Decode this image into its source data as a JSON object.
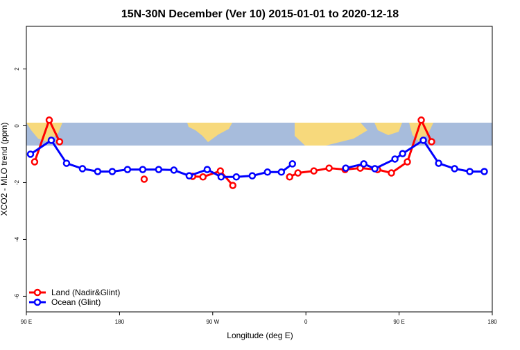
{
  "chart_data": {
    "type": "line",
    "title": "15N-30N December (Ver 10)   2015-01-01 to 2020-12-18",
    "x_label": "Longitude (deg E)",
    "y_label": "XCO2 - MLO trend (ppm)",
    "xlim": [
      90,
      540
    ],
    "ylim": [
      -6.55,
      3.5
    ],
    "xticks": [
      {
        "value": 90,
        "label": "90 E"
      },
      {
        "value": 180,
        "label": "180"
      },
      {
        "value": 270,
        "label": "90 W"
      },
      {
        "value": 360,
        "label": "0"
      },
      {
        "value": 450,
        "label": "90 E"
      },
      {
        "value": 540,
        "label": "180"
      }
    ],
    "yticks": [
      -6,
      -4,
      -2,
      0,
      2
    ],
    "legend": "bottom-left",
    "series": [
      {
        "name": "Land (Nadir&Glint)",
        "color": "#ff0000",
        "x": [
          98,
          112.1,
          122.1,
          null,
          203.8,
          null,
          250.6,
          260.6,
          277.4,
          289.4,
          null,
          344.3,
          352.3,
          367.7,
          382.4,
          397.8,
          412.5,
          429.2,
          442.6,
          458,
          471.4,
          481.4
        ],
        "values": [
          -1.27,
          0.2,
          -0.56,
          null,
          -1.88,
          null,
          -1.78,
          -1.8,
          -1.59,
          -2.1,
          null,
          -1.8,
          -1.66,
          -1.59,
          -1.49,
          -1.54,
          -1.49,
          -1.54,
          -1.66,
          -1.27,
          0.2,
          -0.56
        ]
      },
      {
        "name": "Ocean (Glint)",
        "color": "#0000ff",
        "x": [
          94,
          114.1,
          128.8,
          144.2,
          158.9,
          173,
          187.7,
          202.4,
          217.8,
          232.5,
          247.3,
          264.7,
          278.1,
          292.8,
          308.2,
          322.9,
          336.3,
          347,
          null,
          398.5,
          415.9,
          426.6,
          446,
          453.4,
          473.4,
          488.2,
          503.6,
          518.3,
          532.3
        ],
        "values": [
          -1.0,
          -0.51,
          -1.32,
          -1.51,
          -1.61,
          -1.61,
          -1.54,
          -1.54,
          -1.54,
          -1.56,
          -1.76,
          -1.54,
          -1.8,
          -1.8,
          -1.76,
          -1.63,
          -1.63,
          -1.34,
          null,
          -1.49,
          -1.34,
          -1.51,
          -1.17,
          -0.98,
          -0.51,
          -1.32,
          -1.51,
          -1.61,
          -1.61
        ]
      }
    ]
  }
}
